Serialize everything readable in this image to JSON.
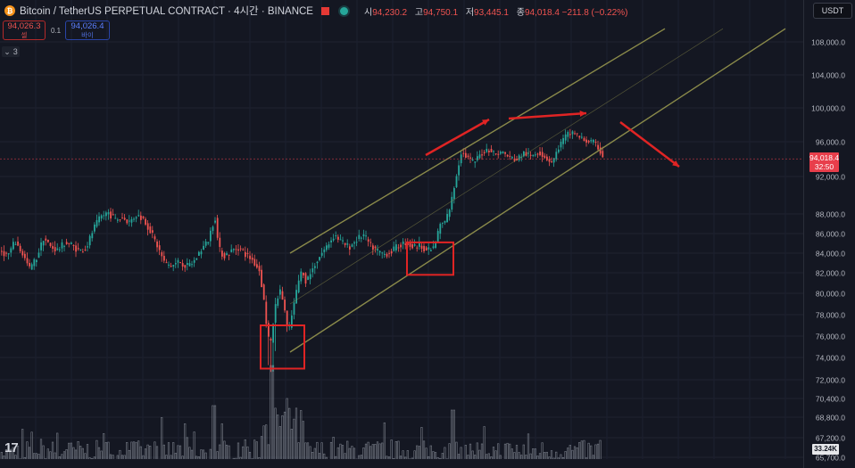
{
  "header": {
    "symbol_title": "Bitcoin / TetherUS PERPETUAL CONTRACT · 4시간 · BINANCE",
    "ohlc": [
      {
        "k": "시",
        "v": "94,230.2"
      },
      {
        "k": "고",
        "v": "94,750.1"
      },
      {
        "k": "저",
        "v": "93,445.1"
      },
      {
        "k": "종",
        "v": "94,018.4 −211.8 (−0.22%)"
      }
    ]
  },
  "trade": {
    "sell_price": "94,026.3",
    "sell_label": "셀",
    "spread": "0.1",
    "buy_price": "94,026.4",
    "buy_label": "바이"
  },
  "indicators_toggle": "3",
  "currency": "USDT",
  "last_price": {
    "value": "94,018.4",
    "countdown": "32:50"
  },
  "volume_label": "33.24K",
  "colors": {
    "background": "#141722",
    "up": "#26a69a",
    "down": "#ef5350",
    "channel": "#8a8a4a",
    "annotation": "#e02424"
  },
  "chart_data": {
    "type": "candlestick",
    "title": "Bitcoin / TetherUS PERPETUAL CONTRACT · 4시간 · BINANCE",
    "y_axis": {
      "position": "right",
      "ticks": [
        108000,
        104000,
        100000,
        96000,
        92000,
        88000,
        86000,
        84000,
        82000,
        80000,
        78000,
        76000,
        74000,
        72000,
        70400,
        68800,
        67200,
        65700
      ],
      "tick_labels": [
        "108,000.0",
        "104,000.0",
        "100,000.0",
        "96,000.0",
        "92,000.0",
        "88,000.0",
        "86,000.0",
        "84,000.0",
        "82,000.0",
        "80,000.0",
        "78,000.0",
        "76,000.0",
        "74,000.0",
        "72,000.0",
        "70,400.0",
        "68,800.0",
        "67,200.0",
        "65,700.0"
      ],
      "scale": "log"
    },
    "grid": true,
    "close_path": [
      [
        0,
        84200
      ],
      [
        8,
        83800
      ],
      [
        16,
        85200
      ],
      [
        24,
        84000
      ],
      [
        32,
        82400
      ],
      [
        40,
        83500
      ],
      [
        48,
        85600
      ],
      [
        56,
        84600
      ],
      [
        64,
        84300
      ],
      [
        72,
        85100
      ],
      [
        80,
        84800
      ],
      [
        88,
        84200
      ],
      [
        96,
        84600
      ],
      [
        104,
        86500
      ],
      [
        112,
        87700
      ],
      [
        120,
        88200
      ],
      [
        128,
        87400
      ],
      [
        136,
        87600
      ],
      [
        144,
        87200
      ],
      [
        152,
        87900
      ],
      [
        160,
        87500
      ],
      [
        168,
        86200
      ],
      [
        176,
        84600
      ],
      [
        184,
        82900
      ],
      [
        192,
        82700
      ],
      [
        200,
        83200
      ],
      [
        208,
        82600
      ],
      [
        216,
        83100
      ],
      [
        224,
        84300
      ],
      [
        232,
        85200
      ],
      [
        240,
        87800
      ],
      [
        244,
        84500
      ],
      [
        250,
        83700
      ],
      [
        258,
        84200
      ],
      [
        266,
        84600
      ],
      [
        274,
        83900
      ],
      [
        282,
        83300
      ],
      [
        290,
        82200
      ],
      [
        294,
        79800
      ],
      [
        298,
        76900
      ],
      [
        302,
        74800
      ],
      [
        306,
        77900
      ],
      [
        310,
        79800
      ],
      [
        314,
        80200
      ],
      [
        318,
        78500
      ],
      [
        322,
        76100
      ],
      [
        326,
        77900
      ],
      [
        330,
        79600
      ],
      [
        334,
        81300
      ],
      [
        338,
        82400
      ],
      [
        342,
        81100
      ],
      [
        346,
        81800
      ],
      [
        352,
        82900
      ],
      [
        358,
        83800
      ],
      [
        366,
        84800
      ],
      [
        374,
        85900
      ],
      [
        382,
        85100
      ],
      [
        390,
        84600
      ],
      [
        398,
        85300
      ],
      [
        406,
        85900
      ],
      [
        414,
        84800
      ],
      [
        422,
        84200
      ],
      [
        430,
        83900
      ],
      [
        438,
        84200
      ],
      [
        446,
        84800
      ],
      [
        454,
        85100
      ],
      [
        462,
        84600
      ],
      [
        470,
        84900
      ],
      [
        478,
        84200
      ],
      [
        486,
        84600
      ],
      [
        492,
        86900
      ],
      [
        498,
        87200
      ],
      [
        504,
        88900
      ],
      [
        510,
        91900
      ],
      [
        516,
        94900
      ],
      [
        522,
        94200
      ],
      [
        530,
        93600
      ],
      [
        538,
        94600
      ],
      [
        546,
        95200
      ],
      [
        554,
        94600
      ],
      [
        562,
        94800
      ],
      [
        570,
        94200
      ],
      [
        578,
        93900
      ],
      [
        586,
        94700
      ],
      [
        594,
        94300
      ],
      [
        602,
        94900
      ],
      [
        610,
        94200
      ],
      [
        618,
        93600
      ],
      [
        626,
        95600
      ],
      [
        634,
        96800
      ],
      [
        642,
        97200
      ],
      [
        648,
        96500
      ],
      [
        656,
        96100
      ],
      [
        664,
        95900
      ],
      [
        670,
        95200
      ],
      [
        676,
        94000
      ]
    ],
    "channel_lines": [
      {
        "name": "upper",
        "points": [
          [
            325,
            84000
          ],
          [
            745,
            109600
          ]
        ]
      },
      {
        "name": "middle",
        "points": [
          [
            325,
            79000
          ],
          [
            810,
            109600
          ]
        ]
      },
      {
        "name": "lower",
        "points": [
          [
            325,
            74500
          ],
          [
            880,
            109600
          ]
        ]
      }
    ],
    "annotations": [
      {
        "type": "box",
        "y_range": [
          73000,
          77000
        ]
      },
      {
        "type": "box",
        "y_range": [
          81800,
          85100
        ]
      },
      {
        "type": "arrow",
        "direction": "up"
      },
      {
        "type": "arrow",
        "direction": "flat"
      },
      {
        "type": "arrow",
        "direction": "down"
      }
    ],
    "last_price": 94018.4
  }
}
